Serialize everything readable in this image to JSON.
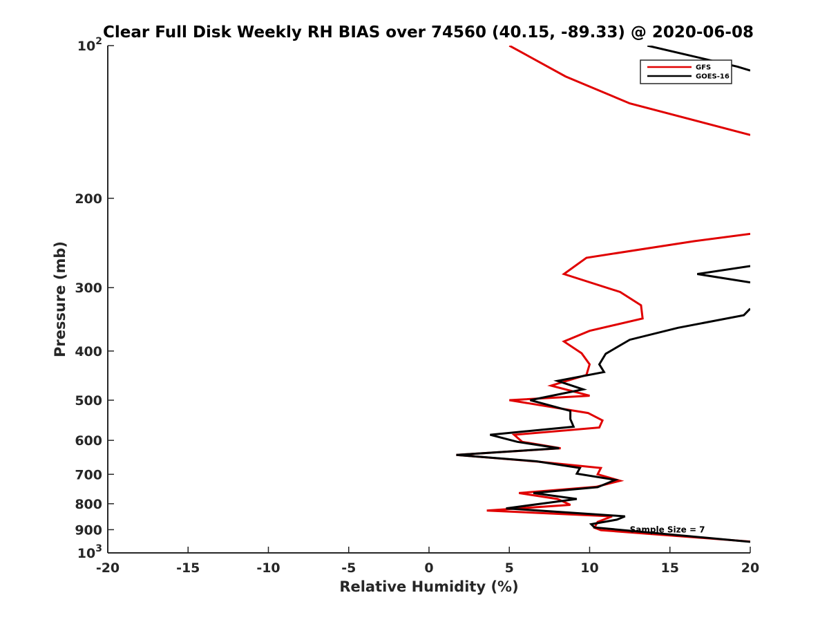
{
  "chart_data": {
    "type": "line",
    "title": "Clear Full Disk Weekly RH BIAS over 74560 (40.15, -89.33) @ 2020-06-08",
    "xlabel": "Relative Humidity (%)",
    "ylabel": "Pressure (mb)",
    "xlim": [
      -20,
      20
    ],
    "ylim": [
      100,
      1000
    ],
    "y_scale": "log",
    "y_reversed": true,
    "grid": false,
    "legend_position": "top-right",
    "x_ticks": [
      -20,
      -15,
      -10,
      -5,
      0,
      5,
      10,
      15,
      20
    ],
    "x_tick_labels": [
      "-20",
      "-15",
      "-10",
      "-5",
      "0",
      "5",
      "10",
      "15",
      "20"
    ],
    "y_ticks": [
      100,
      200,
      300,
      400,
      500,
      600,
      700,
      800,
      900,
      1000
    ],
    "y_tick_labels": [
      {
        "base": "10",
        "exp": "2"
      },
      {
        "base": "200",
        "exp": ""
      },
      {
        "base": "300",
        "exp": ""
      },
      {
        "base": "400",
        "exp": ""
      },
      {
        "base": "500",
        "exp": ""
      },
      {
        "base": "600",
        "exp": ""
      },
      {
        "base": "700",
        "exp": ""
      },
      {
        "base": "800",
        "exp": ""
      },
      {
        "base": "900",
        "exp": ""
      },
      {
        "base": "10",
        "exp": "3"
      }
    ],
    "series": [
      {
        "name": "GFS",
        "color": "#e00000",
        "points": [
          [
            5.0,
            100
          ],
          [
            8.5,
            115
          ],
          [
            12.5,
            130
          ],
          [
            20.0,
            150
          ],
          [
            null,
            null
          ],
          [
            20.0,
            235
          ],
          [
            16.5,
            243
          ],
          [
            9.8,
            262
          ],
          [
            8.4,
            282
          ],
          [
            11.9,
            306
          ],
          [
            13.2,
            325
          ],
          [
            13.3,
            345
          ],
          [
            10.0,
            365
          ],
          [
            8.4,
            383
          ],
          [
            9.5,
            404
          ],
          [
            10.0,
            425
          ],
          [
            9.8,
            446
          ],
          [
            7.6,
            468
          ],
          [
            10.0,
            490
          ],
          [
            5.0,
            500
          ],
          [
            9.9,
            530
          ],
          [
            10.8,
            548
          ],
          [
            10.6,
            566
          ],
          [
            5.3,
            585
          ],
          [
            5.8,
            604
          ],
          [
            8.2,
            622
          ],
          [
            1.7,
            641
          ],
          [
            6.8,
            661
          ],
          [
            10.7,
            680
          ],
          [
            10.5,
            700
          ],
          [
            11.9,
            721
          ],
          [
            10.4,
            741
          ],
          [
            5.6,
            762
          ],
          [
            8.0,
            783
          ],
          [
            8.8,
            804
          ],
          [
            3.6,
            825
          ],
          [
            11.4,
            847
          ],
          [
            10.5,
            869
          ],
          [
            10.3,
            892
          ],
          [
            10.7,
            902
          ],
          [
            20.0,
            950
          ]
        ]
      },
      {
        "name": "GOES-16",
        "color": "#000000",
        "points": [
          [
            13.6,
            100
          ],
          [
            19.2,
            110
          ],
          [
            20.0,
            112
          ],
          [
            null,
            null
          ],
          [
            20.0,
            272
          ],
          [
            16.7,
            282
          ],
          [
            20.0,
            293
          ],
          [
            null,
            null
          ],
          [
            20.0,
            330
          ],
          [
            19.6,
            340
          ],
          [
            15.5,
            360
          ],
          [
            12.5,
            380
          ],
          [
            11.0,
            405
          ],
          [
            10.6,
            425
          ],
          [
            10.9,
            440
          ],
          [
            8.0,
            458
          ],
          [
            9.6,
            476
          ],
          [
            6.3,
            500
          ],
          [
            8.8,
            525
          ],
          [
            8.8,
            545
          ],
          [
            9.0,
            564
          ],
          [
            3.8,
            585
          ],
          [
            5.5,
            604
          ],
          [
            8.1,
            622
          ],
          [
            1.7,
            641
          ],
          [
            6.7,
            660
          ],
          [
            9.4,
            680
          ],
          [
            9.2,
            698
          ],
          [
            11.6,
            718
          ],
          [
            10.5,
            742
          ],
          [
            6.5,
            762
          ],
          [
            9.2,
            783
          ],
          [
            4.8,
            817
          ],
          [
            12.2,
            847
          ],
          [
            11.7,
            860
          ],
          [
            10.1,
            878
          ],
          [
            10.3,
            891
          ],
          [
            20.0,
            951
          ]
        ]
      }
    ],
    "annotations": [
      {
        "text": "Sample Size = 7",
        "x": 12.5,
        "y": 900
      }
    ]
  }
}
